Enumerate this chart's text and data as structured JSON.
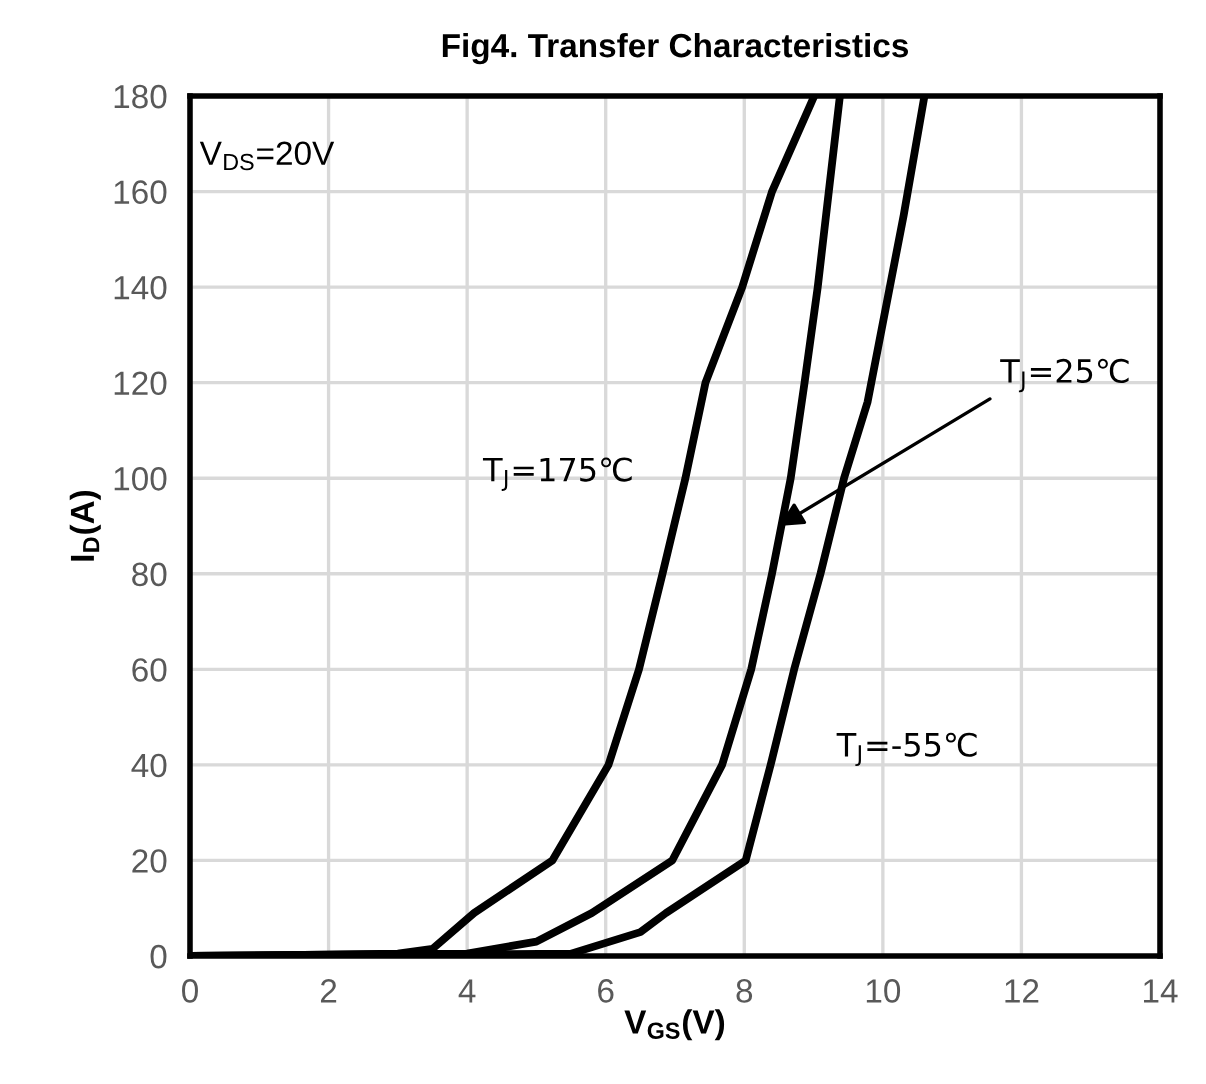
{
  "chart_data": {
    "type": "line",
    "title": "Fig4. Transfer Characteristics",
    "xlabel": "V$_{GS}$(V)",
    "ylabel": "I$_{D}$(A)",
    "annotations": [
      "V$_{DS}$=20V"
    ],
    "series": [
      {
        "name": "T$_{J}$=175℃",
        "color": "#000000",
        "x": [
          0,
          2,
          3,
          3.5,
          4.1,
          5.23,
          6.04,
          6.48,
          6.82,
          7.15,
          7.44,
          7.97,
          8.4,
          9.01
        ],
        "values": [
          0,
          0.3,
          0.5,
          1.5,
          9,
          20,
          40,
          60,
          80,
          100,
          120,
          140,
          160,
          180
        ]
      },
      {
        "name": "T$_{J}$=25℃",
        "color": "#000000",
        "x": [
          0,
          2,
          4,
          5,
          5.8,
          6.96,
          7.68,
          8.1,
          8.4,
          8.67,
          8.87,
          9.06,
          9.22,
          9.38
        ],
        "values": [
          0,
          0.3,
          0.5,
          3,
          9,
          20,
          40,
          60,
          80,
          100,
          120,
          140,
          160,
          180
        ]
      },
      {
        "name": "T$_{J}$=-55℃",
        "color": "#000000",
        "x": [
          0,
          2,
          4,
          5.5,
          6.5,
          6.87,
          8.02,
          8.38,
          8.72,
          9.1,
          9.44,
          9.78,
          9.94,
          10.3,
          10.6
        ],
        "values": [
          0,
          0.2,
          0.3,
          0.5,
          5,
          9,
          20,
          40,
          60,
          80,
          100,
          116,
          128,
          155,
          180
        ]
      }
    ],
    "xlim": [
      0,
      14
    ],
    "xticks": [
      0,
      2,
      4,
      6,
      8,
      10,
      12,
      14
    ],
    "ylim": [
      0,
      180
    ],
    "yticks": [
      0,
      20,
      40,
      60,
      80,
      100,
      120,
      140,
      160,
      180
    ],
    "grid": true,
    "line_style": "solid",
    "marker": "none"
  }
}
